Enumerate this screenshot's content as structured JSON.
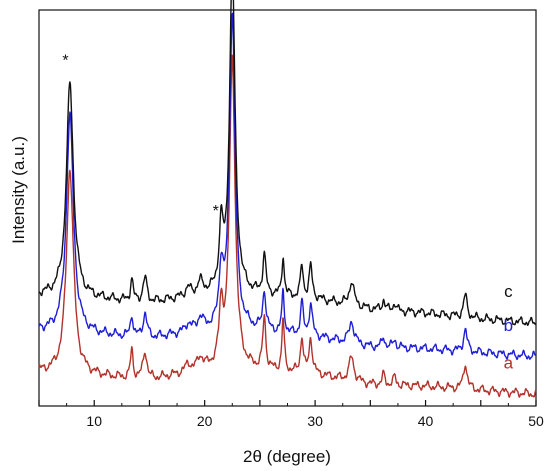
{
  "chart_data": {
    "type": "line",
    "xlabel": "2θ (degree)",
    "ylabel": "Intensity (a.u.)",
    "xlim": [
      5,
      50
    ],
    "ylim": [
      0,
      100
    ],
    "xticks": [
      5,
      10,
      15,
      20,
      25,
      30,
      35,
      40,
      45,
      50
    ],
    "xtick_labels": [
      "",
      "10",
      "",
      "20",
      "",
      "30",
      "",
      "40",
      "",
      "50"
    ],
    "y_ticks_labeled": false,
    "grid": false,
    "legend": "inline-labels-right",
    "peak_positions": [
      7.8,
      13.4,
      14.6,
      18.5,
      19.6,
      21.5,
      22.5,
      25.4,
      27.1,
      28.8,
      29.6,
      33.3,
      36.2,
      37.2,
      43.6
    ],
    "series": [
      {
        "name": "a",
        "color": "#b2332b",
        "baseline": [
          [
            5,
            8.5
          ],
          [
            10,
            7.5
          ],
          [
            15,
            6.5
          ],
          [
            20,
            9
          ],
          [
            25,
            9
          ],
          [
            30,
            8
          ],
          [
            35,
            5.5
          ],
          [
            40,
            5
          ],
          [
            45,
            4
          ],
          [
            50,
            3
          ]
        ],
        "peak_heights": [
          52,
          7,
          7,
          2,
          3,
          14,
          79,
          13,
          13,
          9,
          9,
          6,
          2.5,
          2,
          6.5
        ]
      },
      {
        "name": "b",
        "color": "#1e1ed6",
        "baseline": [
          [
            5,
            19
          ],
          [
            10,
            18
          ],
          [
            15,
            17
          ],
          [
            20,
            19
          ],
          [
            25,
            19
          ],
          [
            30,
            17.5
          ],
          [
            35,
            15
          ],
          [
            40,
            14.5
          ],
          [
            45,
            13.5
          ],
          [
            50,
            12.5
          ]
        ],
        "peak_heights": [
          55,
          5.5,
          6,
          2,
          3,
          14,
          80,
          10,
          10,
          8,
          8,
          5.5,
          2.5,
          2,
          5.5
        ]
      },
      {
        "name": "c",
        "color": "#111111",
        "baseline": [
          [
            5,
            28
          ],
          [
            10,
            27
          ],
          [
            15,
            26
          ],
          [
            20,
            28
          ],
          [
            25,
            28
          ],
          [
            30,
            27
          ],
          [
            35,
            24.5
          ],
          [
            40,
            23.5
          ],
          [
            45,
            22
          ],
          [
            50,
            21
          ]
        ],
        "peak_heights": [
          54,
          5.5,
          6,
          2,
          3,
          15,
          82,
          10,
          10,
          8,
          8,
          6,
          2.5,
          2,
          5.5
        ]
      }
    ],
    "annotations": [
      {
        "text": "*",
        "x": 7.4,
        "y": 86
      },
      {
        "text": "*",
        "x": 21.0,
        "y": 48
      },
      {
        "text": "*",
        "x": 21.7,
        "y": 105
      }
    ]
  }
}
